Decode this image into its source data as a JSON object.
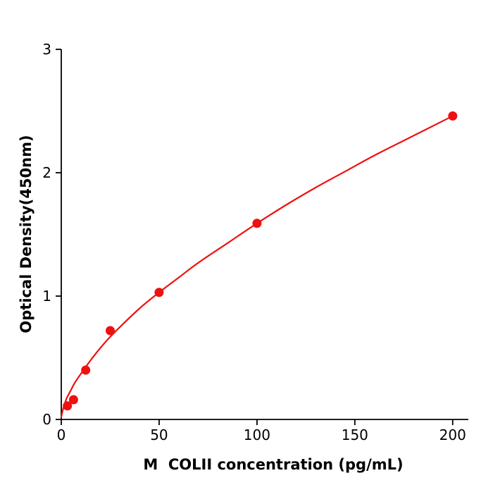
{
  "figure": {
    "background": "#ffffff",
    "axis_color": "#000000"
  },
  "chart_data": {
    "type": "scatter",
    "title": "",
    "xlabel": "M  COLII concentration (pg/mL)",
    "ylabel": "Optical Density(450nm)",
    "xlim": [
      0,
      208
    ],
    "ylim": [
      0,
      3
    ],
    "grid": false,
    "legend": "none",
    "xticks": [
      0,
      50,
      100,
      150,
      200
    ],
    "xtick_labels": [
      "0",
      "50",
      "100",
      "150",
      "200"
    ],
    "yticks": [
      0,
      1,
      2,
      3
    ],
    "ytick_labels": [
      "0",
      "1",
      "2",
      "3"
    ],
    "marker_color": "#ee1111",
    "line_color": "#ee1111",
    "marker_radius": 6.5,
    "points": [
      {
        "x": 3.125,
        "y": 0.11
      },
      {
        "x": 6.25,
        "y": 0.16
      },
      {
        "x": 12.5,
        "y": 0.4
      },
      {
        "x": 25,
        "y": 0.72
      },
      {
        "x": 50,
        "y": 1.03
      },
      {
        "x": 100,
        "y": 1.59
      },
      {
        "x": 200,
        "y": 2.46
      }
    ],
    "curve_points": [
      [
        0,
        0.02
      ],
      [
        1,
        0.09
      ],
      [
        2,
        0.14
      ],
      [
        3,
        0.18
      ],
      [
        4,
        0.21
      ],
      [
        5,
        0.24
      ],
      [
        7,
        0.3
      ],
      [
        10,
        0.37
      ],
      [
        15,
        0.48
      ],
      [
        20,
        0.58
      ],
      [
        25,
        0.67
      ],
      [
        30,
        0.75
      ],
      [
        40,
        0.9
      ],
      [
        50,
        1.03
      ],
      [
        60,
        1.15
      ],
      [
        70,
        1.27
      ],
      [
        85,
        1.43
      ],
      [
        100,
        1.59
      ],
      [
        115,
        1.74
      ],
      [
        130,
        1.88
      ],
      [
        145,
        2.01
      ],
      [
        160,
        2.14
      ],
      [
        180,
        2.3
      ],
      [
        200,
        2.46
      ]
    ]
  }
}
